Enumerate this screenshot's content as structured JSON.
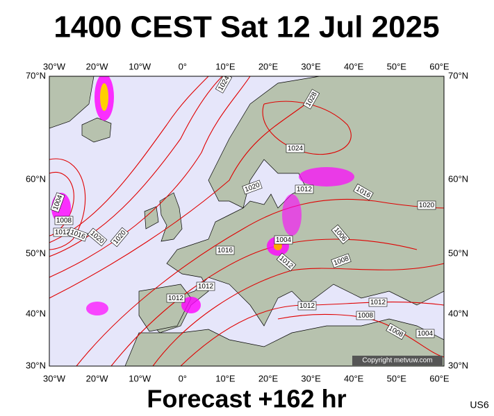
{
  "title": "1400 CEST Sat 12 Jul 2025",
  "longitude_labels": [
    "30°W",
    "20°W",
    "10°W",
    "0°",
    "10°E",
    "20°E",
    "30°E",
    "40°E",
    "50°E",
    "60°E"
  ],
  "latitude_labels": [
    "70°N",
    "60°N",
    "50°N",
    "40°N",
    "30°N"
  ],
  "isobar_labels": [
    "1024",
    "1028",
    "1024",
    "1020",
    "1012",
    "1016",
    "1020",
    "1004",
    "1008",
    "1012",
    "1016",
    "1020",
    "1020",
    "1004",
    "1006",
    "1012",
    "1016",
    "1008",
    "1012",
    "1012",
    "1012",
    "1012",
    "1008",
    "1008",
    "1004"
  ],
  "copyright": "Copyright metvuw.com",
  "footer": "Forecast +162 hr",
  "code": "US6"
}
